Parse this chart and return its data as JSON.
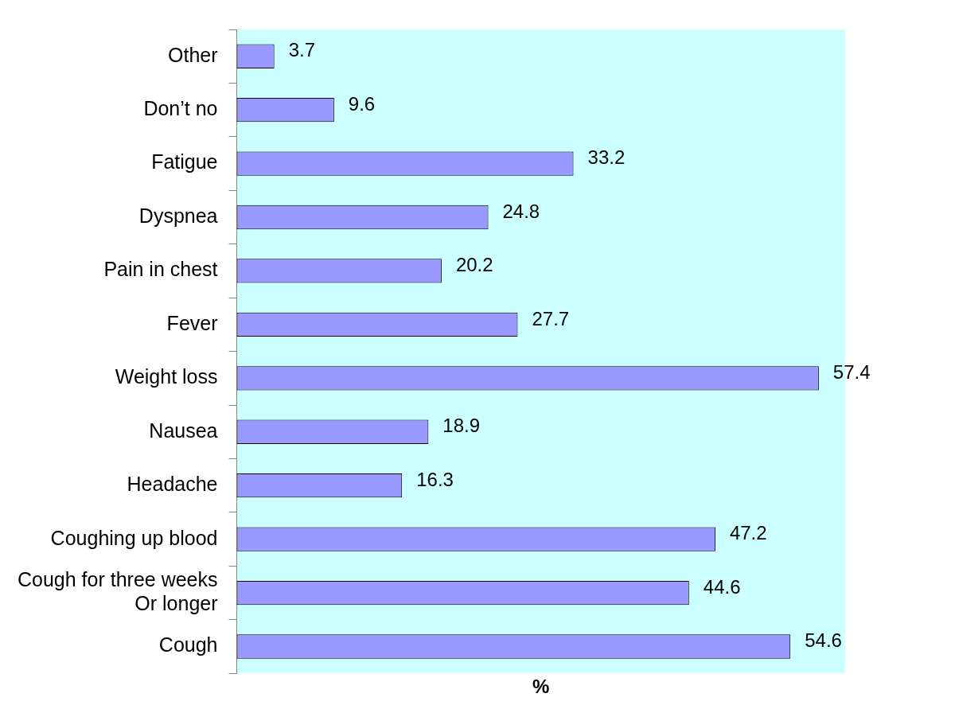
{
  "chart_data": {
    "type": "bar",
    "orientation": "horizontal",
    "xlabel": "%",
    "categories": [
      "Other",
      "Don’t no",
      "Fatigue",
      "Dyspnea",
      "Pain in chest",
      "Fever",
      "Weight loss",
      "Nausea",
      "Headache",
      "Coughing up blood",
      "Cough for three weeks\nOr longer",
      "Cough"
    ],
    "values": [
      3.7,
      9.6,
      33.2,
      24.8,
      20.2,
      27.7,
      57.4,
      18.9,
      16.3,
      47.2,
      44.6,
      54.6
    ],
    "color": "#9999ff",
    "data_labels": true,
    "tick_labels": "y",
    "grid": false,
    "legend": false
  }
}
